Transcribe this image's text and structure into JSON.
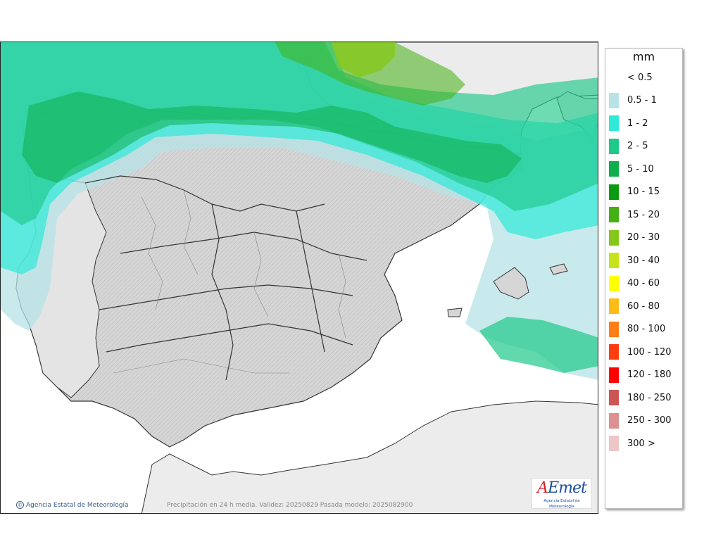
{
  "map": {
    "credit": "Agencia Estatal de Meteorología",
    "footer": "Precipitación en 24 h media. Validez: 20250829 Pasada modelo: 2025082900",
    "logo": {
      "mark_first": "A",
      "mark_rest": "Emet",
      "subtitle": "Agencia Estatal de Meteorología"
    }
  },
  "legend": {
    "unit": "mm",
    "items": [
      {
        "label": "< 0.5",
        "color": "#ffffff"
      },
      {
        "label": "0.5 - 1",
        "color": "#b7e3e6"
      },
      {
        "label": "1 - 2",
        "color": "#2ee8d8"
      },
      {
        "label": "2 - 5",
        "color": "#1ec98a"
      },
      {
        "label": "5 - 10",
        "color": "#0fae4c"
      },
      {
        "label": "10 - 15",
        "color": "#0b9a11"
      },
      {
        "label": "15 - 20",
        "color": "#44b014"
      },
      {
        "label": "20 - 30",
        "color": "#85c81a"
      },
      {
        "label": "30 - 40",
        "color": "#c6e218"
      },
      {
        "label": "40 - 60",
        "color": "#ffff00"
      },
      {
        "label": "60 - 80",
        "color": "#ffbb18"
      },
      {
        "label": "80 - 100",
        "color": "#ff7d14"
      },
      {
        "label": "100 - 120",
        "color": "#ff3d10"
      },
      {
        "label": "120 - 180",
        "color": "#ff0000"
      },
      {
        "label": "180 - 250",
        "color": "#cc5555"
      },
      {
        "label": "250 - 300",
        "color": "#dc9090"
      },
      {
        "label": "300 >",
        "color": "#eec6c6"
      }
    ]
  },
  "colors": {
    "land": "#dadada",
    "other_land": "#ececec",
    "sea": "#ffffff",
    "border": "#333333"
  }
}
